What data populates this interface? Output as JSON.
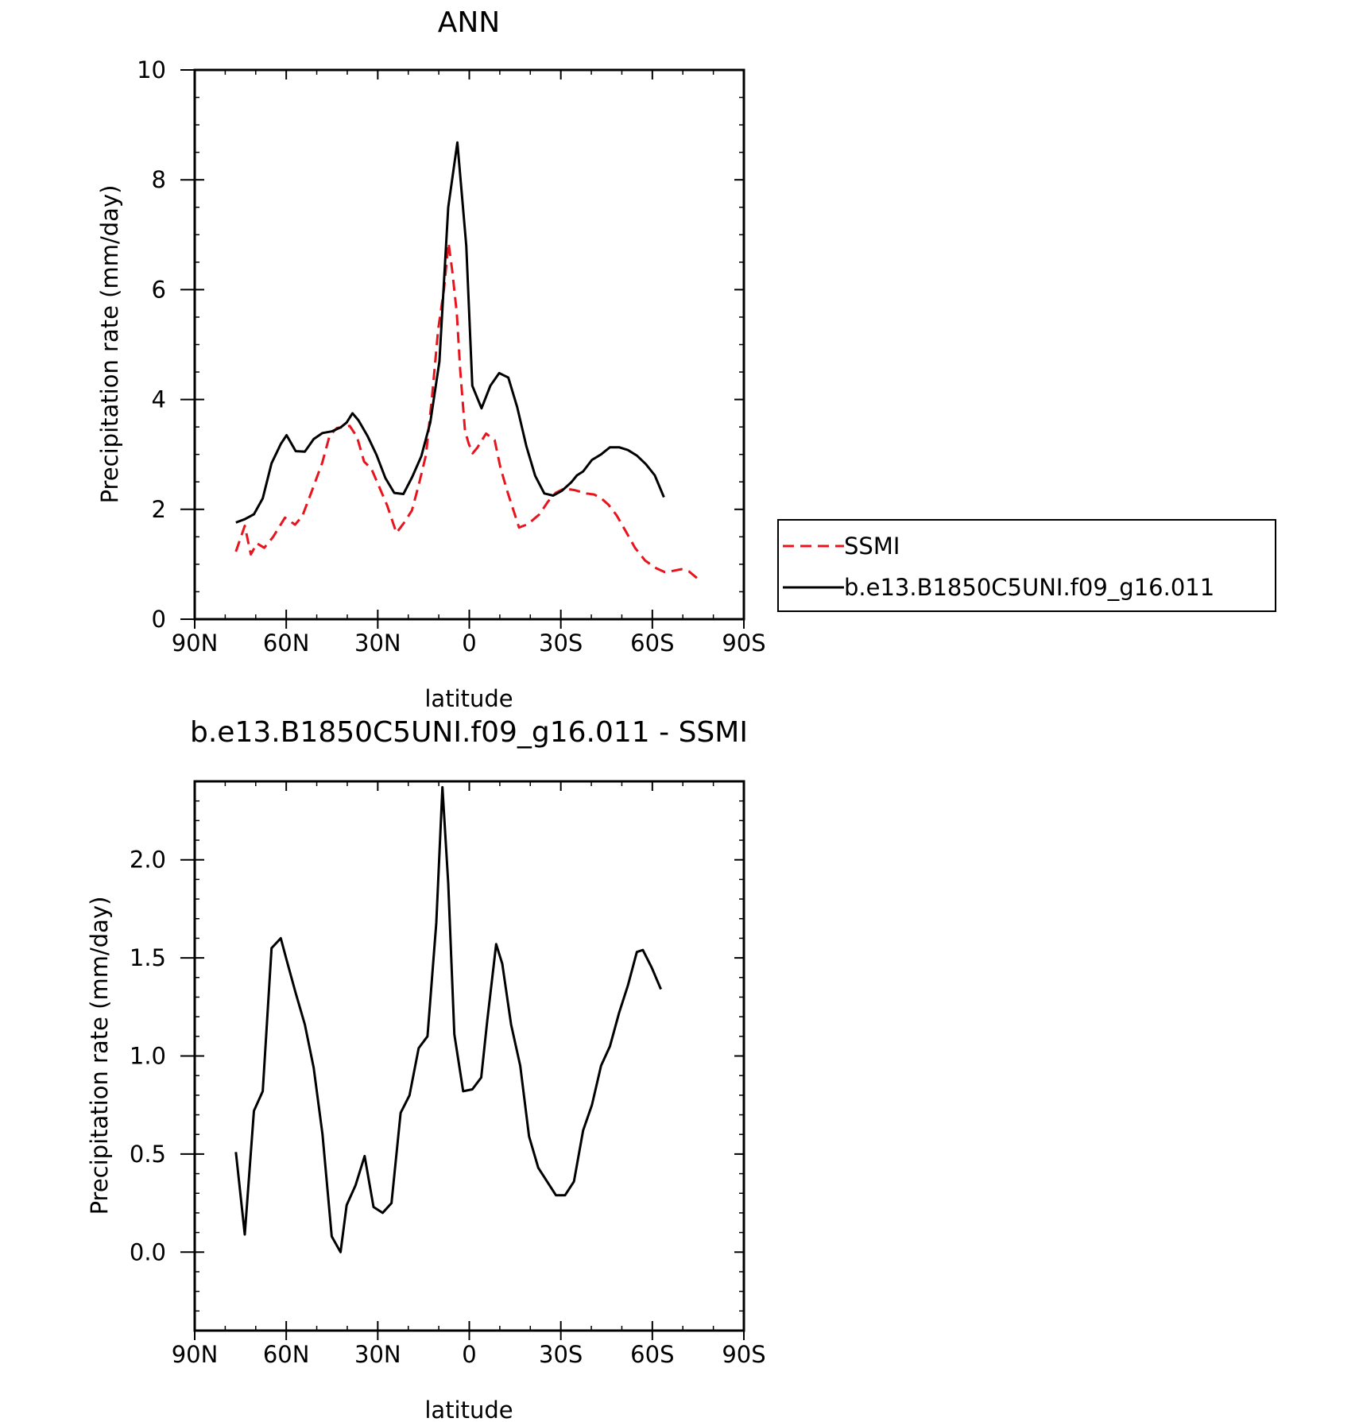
{
  "chart_data": [
    {
      "type": "line",
      "title": "ANN",
      "xlabel": "latitude",
      "ylabel": "Precipitation rate (mm/day)",
      "xlim": [
        90,
        -90
      ],
      "ylim": [
        0,
        10
      ],
      "x_ticks": [
        90,
        60,
        30,
        0,
        -30,
        -60,
        -90
      ],
      "x_tick_labels": [
        "90N",
        "60N",
        "30N",
        "0",
        "30S",
        "60S",
        "90S"
      ],
      "y_ticks": [
        0,
        2,
        4,
        6,
        8,
        10
      ],
      "y_tick_labels": [
        "0",
        "2",
        "4",
        "6",
        "8",
        "10"
      ],
      "legend": {
        "placement": "right",
        "entries": [
          "SSMI",
          "b.e13.B1850C5UNI.f09_g16.011"
        ]
      },
      "series": [
        {
          "name": "SSMI",
          "color": "#e8141d",
          "dash": "dashed",
          "x": [
            76.5,
            73.6,
            71.6,
            69.6,
            67.2,
            64.3,
            60.4,
            57.1,
            54.7,
            51.5,
            48.2,
            45.8,
            43.4,
            41.1,
            39.2,
            36.8,
            34.5,
            32.1,
            29.3,
            26.9,
            23.9,
            21.2,
            18.8,
            16.6,
            14.2,
            12.2,
            10.2,
            8.3,
            6.8,
            5.6,
            4.1,
            3.0,
            1.4,
            0.2,
            -1.1,
            -2.6,
            -5.5,
            -8.3,
            -10.2,
            -12.5,
            -16.3,
            -19.2,
            -23.0,
            -25.8,
            -28.3,
            -31.2,
            -34.5,
            -38.4,
            -40.9,
            -43.3,
            -45.7,
            -48.3,
            -51.3,
            -54.3,
            -57.6,
            -61.2,
            -64.0,
            -66.8,
            -69.5,
            -72.0,
            -74.6
          ],
          "values": [
            1.23,
            1.7,
            1.18,
            1.38,
            1.3,
            1.5,
            1.85,
            1.72,
            1.88,
            2.35,
            2.85,
            3.34,
            3.48,
            3.5,
            3.52,
            3.32,
            2.87,
            2.74,
            2.38,
            2.07,
            1.57,
            1.77,
            1.98,
            2.44,
            2.99,
            4.06,
            5.27,
            6.0,
            6.85,
            6.35,
            5.57,
            4.55,
            3.43,
            3.2,
            3.02,
            3.12,
            3.38,
            3.26,
            2.76,
            2.32,
            1.67,
            1.73,
            1.91,
            2.14,
            2.3,
            2.38,
            2.35,
            2.29,
            2.27,
            2.2,
            2.08,
            1.89,
            1.6,
            1.3,
            1.07,
            0.93,
            0.86,
            0.88,
            0.91,
            0.87,
            0.75
          ]
        },
        {
          "name": "b.e13.B1850C5UNI.f09_g16.011",
          "color": "#000000",
          "dash": "solid",
          "x": [
            76.5,
            73.6,
            70.6,
            67.7,
            64.8,
            61.8,
            59.9,
            56.9,
            53.9,
            51.0,
            48.1,
            45.1,
            42.2,
            40.2,
            38.3,
            36.3,
            33.4,
            30.4,
            27.5,
            24.6,
            21.6,
            18.7,
            15.7,
            12.8,
            9.8,
            6.9,
            3.9,
            1.0,
            -1.0,
            -4.0,
            -6.9,
            -9.8,
            -12.8,
            -15.7,
            -18.7,
            -21.6,
            -24.6,
            -27.5,
            -30.4,
            -33.4,
            -35.3,
            -37.3,
            -40.2,
            -43.2,
            -46.1,
            -49.1,
            -52.0,
            -54.9,
            -57.9,
            -60.8,
            -63.8
          ],
          "values": [
            1.76,
            1.82,
            1.91,
            2.2,
            2.84,
            3.19,
            3.35,
            3.06,
            3.05,
            3.28,
            3.39,
            3.42,
            3.49,
            3.58,
            3.75,
            3.62,
            3.34,
            2.99,
            2.57,
            2.3,
            2.28,
            2.59,
            2.97,
            3.58,
            4.69,
            7.5,
            8.68,
            6.8,
            4.25,
            3.84,
            4.25,
            4.48,
            4.4,
            3.86,
            3.15,
            2.61,
            2.29,
            2.25,
            2.34,
            2.49,
            2.62,
            2.69,
            2.9,
            3.0,
            3.13,
            3.13,
            3.08,
            2.98,
            2.82,
            2.62,
            2.22
          ]
        }
      ]
    },
    {
      "type": "line",
      "title": "b.e13.B1850C5UNI.f09_g16.011 - SSMI",
      "xlabel": "latitude",
      "ylabel": "Precipitation rate (mm/day)",
      "xlim": [
        90,
        -90
      ],
      "ylim": [
        -0.4,
        2.4
      ],
      "x_ticks": [
        90,
        60,
        30,
        0,
        -30,
        -60,
        -90
      ],
      "x_tick_labels": [
        "90N",
        "60N",
        "30N",
        "0",
        "30S",
        "60S",
        "90S"
      ],
      "y_ticks": [
        0.0,
        0.5,
        1.0,
        1.5,
        2.0
      ],
      "y_tick_labels": [
        "0.0",
        "0.5",
        "1.0",
        "1.5",
        "2.0"
      ],
      "series": [
        {
          "color": "#000000",
          "dash": "solid",
          "x": [
            76.5,
            73.6,
            70.6,
            67.7,
            64.8,
            61.8,
            59.9,
            56.9,
            53.9,
            51.0,
            48.1,
            45.1,
            42.2,
            40.2,
            37.3,
            34.3,
            31.4,
            28.4,
            25.5,
            22.5,
            19.6,
            16.6,
            13.7,
            10.8,
            8.8,
            6.9,
            4.9,
            2.0,
            -1.0,
            -3.9,
            -5.9,
            -8.8,
            -10.8,
            -13.7,
            -16.7,
            -19.6,
            -22.6,
            -25.5,
            -28.4,
            -31.4,
            -34.3,
            -37.3,
            -40.2,
            -43.2,
            -46.1,
            -49.1,
            -52.0,
            -54.9,
            -56.9,
            -59.8,
            -62.8
          ],
          "values": [
            0.51,
            0.09,
            0.72,
            0.82,
            1.55,
            1.6,
            1.49,
            1.32,
            1.16,
            0.94,
            0.6,
            0.08,
            0.0,
            0.24,
            0.34,
            0.49,
            0.23,
            0.2,
            0.25,
            0.71,
            0.8,
            1.04,
            1.1,
            1.68,
            2.37,
            1.88,
            1.11,
            0.82,
            0.83,
            0.89,
            1.18,
            1.57,
            1.47,
            1.16,
            0.95,
            0.59,
            0.43,
            0.36,
            0.29,
            0.29,
            0.36,
            0.62,
            0.75,
            0.95,
            1.05,
            1.22,
            1.36,
            1.53,
            1.54,
            1.45,
            1.34
          ]
        }
      ]
    }
  ]
}
